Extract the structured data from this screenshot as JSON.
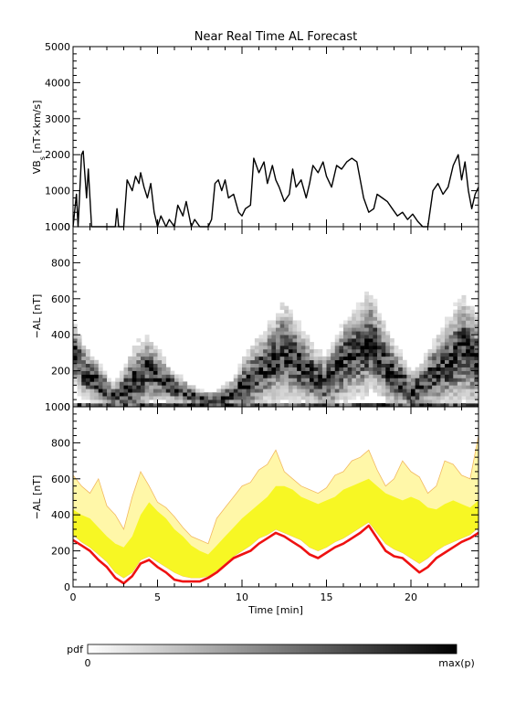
{
  "title": "Near Real Time AL Forecast",
  "colorbar": {
    "label": "pdf",
    "min_label": "0",
    "max_label": "max(p)"
  },
  "colors": {
    "vbs_line": "#000000",
    "outer_band": "#fff7a8",
    "outer_band_edge": "#f2b860",
    "inner_band": "#f7f724",
    "median_line": "#ee1111",
    "axes": "#000000"
  },
  "chart_data": [
    {
      "type": "line",
      "panel": "top",
      "ylabel": "VB",
      "ylabel_subscript": "s",
      "ylabel_units": " [nT×km/s]",
      "ylim": [
        0,
        5000
      ],
      "yticks": [
        "0",
        "1000",
        "2000",
        "3000",
        "4000",
        "5000"
      ],
      "xlim": [
        0,
        24
      ],
      "series": [
        {
          "x": [
            0,
            0.2,
            0.3,
            0.5,
            0.6,
            0.8,
            0.9,
            1.1,
            1.3,
            1.5,
            2.0,
            2.5,
            2.6,
            2.7,
            3.0,
            3.2,
            3.5,
            3.7,
            3.9,
            4.0,
            4.2,
            4.4,
            4.6,
            4.8,
            5.0,
            5.2,
            5.5,
            5.7,
            6.0,
            6.2,
            6.5,
            6.7,
            7.0,
            7.2,
            7.5,
            7.8,
            8.0,
            8.2,
            8.4,
            8.6,
            8.8,
            9.0,
            9.2,
            9.5,
            9.8,
            10.0,
            10.2,
            10.5,
            10.7,
            11.0,
            11.3,
            11.5,
            11.8,
            12.0,
            12.2,
            12.5,
            12.8,
            13.0,
            13.2,
            13.5,
            13.8,
            14.0,
            14.2,
            14.5,
            14.8,
            15.0,
            15.3,
            15.6,
            15.9,
            16.2,
            16.5,
            16.8,
            17.0,
            17.2,
            17.5,
            17.8,
            18.0,
            18.3,
            18.6,
            18.9,
            19.2,
            19.5,
            19.8,
            20.1,
            20.4,
            20.7,
            21.0,
            21.3,
            21.6,
            21.9,
            22.2,
            22.5,
            22.8,
            23.0,
            23.2,
            23.4,
            23.6,
            23.8,
            24.0
          ],
          "values": [
            0,
            900,
            0,
            2000,
            2100,
            800,
            1600,
            0,
            0,
            0,
            0,
            0,
            500,
            0,
            0,
            1300,
            1000,
            1400,
            1200,
            1500,
            1100,
            800,
            1200,
            400,
            0,
            300,
            0,
            200,
            0,
            600,
            300,
            700,
            0,
            200,
            0,
            0,
            0,
            200,
            1200,
            1300,
            1000,
            1300,
            800,
            900,
            400,
            300,
            500,
            600,
            1900,
            1500,
            1800,
            1200,
            1700,
            1300,
            1100,
            700,
            900,
            1600,
            1100,
            1300,
            800,
            1200,
            1700,
            1500,
            1800,
            1400,
            1100,
            1700,
            1600,
            1800,
            1900,
            1800,
            1300,
            800,
            400,
            500,
            900,
            800,
            700,
            500,
            300,
            400,
            200,
            350,
            150,
            0,
            0,
            1000,
            1200,
            900,
            1100,
            1700,
            2000,
            1300,
            1800,
            1000,
            500,
            900,
            1100
          ]
        }
      ]
    },
    {
      "type": "heatmap",
      "panel": "middle",
      "ylabel": "−AL [nT]",
      "ylim": [
        0,
        1000
      ],
      "yticks": [
        "0",
        "200",
        "400",
        "600",
        "800",
        "1000"
      ],
      "xlim": [
        0,
        24
      ],
      "columns": 96,
      "rows": 42,
      "row_height": 20,
      "center": [
        280,
        240,
        200,
        180,
        160,
        140,
        120,
        100,
        80,
        60,
        60,
        70,
        90,
        110,
        130,
        150,
        170,
        200,
        190,
        180,
        170,
        150,
        130,
        110,
        100,
        90,
        80,
        70,
        60,
        50,
        40,
        40,
        40,
        40,
        40,
        50,
        60,
        70,
        80,
        100,
        120,
        140,
        160,
        180,
        200,
        220,
        240,
        260,
        280,
        300,
        300,
        280,
        260,
        240,
        220,
        200,
        180,
        160,
        150,
        140,
        150,
        170,
        200,
        230,
        260,
        280,
        290,
        300,
        320,
        340,
        360,
        330,
        290,
        250,
        220,
        190,
        160,
        140,
        120,
        100,
        90,
        100,
        120,
        140,
        160,
        180,
        200,
        220,
        240,
        260,
        280,
        300,
        320,
        300,
        280,
        260
      ],
      "spread": [
        220,
        220,
        200,
        180,
        160,
        160,
        140,
        120,
        100,
        100,
        120,
        160,
        200,
        240,
        260,
        280,
        260,
        240,
        220,
        200,
        180,
        160,
        140,
        120,
        100,
        100,
        90,
        80,
        70,
        60,
        60,
        60,
        60,
        60,
        70,
        80,
        90,
        100,
        120,
        160,
        200,
        220,
        240,
        260,
        260,
        260,
        280,
        300,
        320,
        340,
        340,
        320,
        300,
        280,
        260,
        240,
        220,
        200,
        200,
        200,
        220,
        240,
        260,
        280,
        300,
        300,
        300,
        320,
        340,
        360,
        340,
        320,
        300,
        280,
        260,
        240,
        220,
        200,
        180,
        160,
        150,
        160,
        180,
        200,
        220,
        240,
        260,
        280,
        300,
        320,
        340,
        360,
        380,
        360,
        340,
        320
      ]
    },
    {
      "type": "area",
      "panel": "bottom",
      "ylabel": "−AL [nT]",
      "xlabel": "Time [min]",
      "ylim": [
        0,
        1000
      ],
      "yticks": [
        "0",
        "200",
        "400",
        "600",
        "800",
        "1000"
      ],
      "xlim": [
        0,
        24
      ],
      "xticks": [
        "0",
        "5",
        "10",
        "15",
        "20"
      ],
      "x": [
        0,
        0.5,
        1.0,
        1.5,
        2.0,
        2.5,
        3.0,
        3.5,
        4.0,
        4.5,
        5.0,
        5.5,
        6.0,
        6.5,
        7.0,
        7.5,
        8.0,
        8.5,
        9.0,
        9.5,
        10.0,
        10.5,
        11.0,
        11.5,
        12.0,
        12.5,
        13.0,
        13.5,
        14.0,
        14.5,
        15.0,
        15.5,
        16.0,
        16.5,
        17.0,
        17.5,
        18.0,
        18.5,
        19.0,
        19.5,
        20.0,
        20.5,
        21.0,
        21.5,
        22.0,
        22.5,
        23.0,
        23.5,
        24.0
      ],
      "series": [
        {
          "name": "outer_upper",
          "values": [
            620,
            560,
            520,
            600,
            450,
            400,
            320,
            500,
            640,
            560,
            470,
            440,
            390,
            330,
            280,
            260,
            240,
            380,
            440,
            500,
            560,
            580,
            650,
            680,
            760,
            640,
            600,
            560,
            540,
            520,
            550,
            620,
            640,
            700,
            720,
            760,
            650,
            560,
            600,
            700,
            640,
            610,
            520,
            560,
            700,
            680,
            620,
            600,
            840
          ]
        },
        {
          "name": "inner_upper",
          "values": [
            430,
            400,
            380,
            330,
            280,
            240,
            220,
            280,
            400,
            470,
            420,
            380,
            320,
            280,
            230,
            200,
            180,
            230,
            280,
            330,
            380,
            420,
            460,
            500,
            560,
            560,
            540,
            500,
            480,
            460,
            480,
            500,
            540,
            560,
            580,
            600,
            560,
            520,
            500,
            480,
            500,
            480,
            440,
            430,
            460,
            480,
            460,
            440,
            480
          ]
        },
        {
          "name": "inner_lower",
          "values": [
            290,
            250,
            220,
            180,
            140,
            80,
            50,
            80,
            150,
            170,
            140,
            110,
            80,
            60,
            50,
            50,
            60,
            90,
            130,
            170,
            200,
            230,
            270,
            290,
            320,
            300,
            280,
            260,
            220,
            200,
            220,
            250,
            270,
            300,
            330,
            360,
            300,
            240,
            210,
            190,
            160,
            130,
            160,
            200,
            230,
            250,
            270,
            290,
            330
          ]
        },
        {
          "name": "median",
          "values": [
            260,
            230,
            200,
            150,
            110,
            50,
            20,
            60,
            130,
            150,
            110,
            80,
            40,
            30,
            30,
            30,
            50,
            80,
            120,
            160,
            180,
            200,
            240,
            270,
            300,
            280,
            250,
            220,
            180,
            160,
            190,
            220,
            240,
            270,
            300,
            340,
            270,
            200,
            170,
            160,
            120,
            80,
            110,
            160,
            190,
            220,
            250,
            270,
            300
          ]
        }
      ]
    }
  ]
}
